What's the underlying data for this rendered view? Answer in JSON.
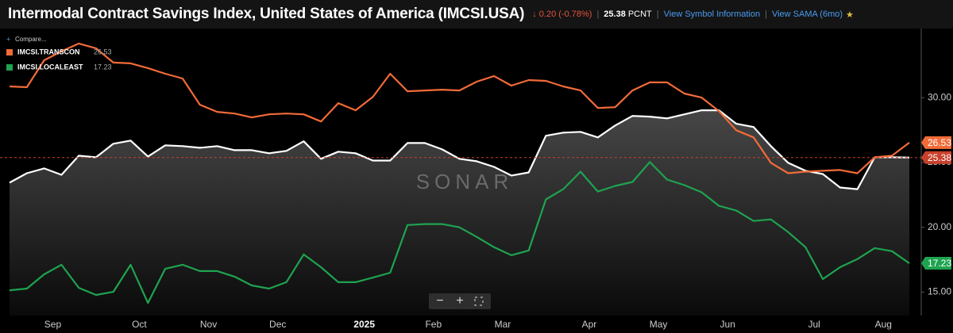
{
  "chart_data": {
    "type": "line",
    "title": "Intermodal Contract Savings Index, United States of America (IMCSI.USA)",
    "change": "0.20 (-0.78%)",
    "unit": "PCNT",
    "links": [
      "View Symbol Information",
      "View SAMA (6mo)"
    ],
    "compare": "Compare...",
    "watermark": "SONAR",
    "categories": [
      null,
      null,
      "Sep",
      null,
      null,
      null,
      null,
      "Oct",
      null,
      null,
      null,
      "Nov",
      null,
      null,
      null,
      "Dec",
      null,
      null,
      null,
      null,
      "2025",
      null,
      null,
      null,
      "Feb",
      null,
      null,
      null,
      "Mar",
      null,
      null,
      null,
      null,
      "Apr",
      null,
      null,
      null,
      "May",
      null,
      null,
      null,
      "Jun",
      null,
      null,
      null,
      null,
      "Jul",
      null,
      null,
      null,
      "Aug",
      null,
      null
    ],
    "series": [
      {
        "color": "#ffffff",
        "area": true,
        "values": [
          23.44,
          24.17,
          24.54,
          24.05,
          25.52,
          25.4,
          26.44,
          26.69,
          25.46,
          26.32,
          26.26,
          26.13,
          26.26,
          25.95,
          25.95,
          25.71,
          25.89,
          26.63,
          25.28,
          25.83,
          25.71,
          25.15,
          25.15,
          26.5,
          26.5,
          26.01,
          25.28,
          25.09,
          24.66,
          23.99,
          24.23,
          27.06,
          27.3,
          27.36,
          26.93,
          27.85,
          28.59,
          28.53,
          28.4,
          28.71,
          29.02,
          29.02,
          27.98,
          27.73,
          26.26,
          24.97,
          24.36,
          24.11,
          23.07,
          22.94,
          25.4,
          25.4,
          25.38
        ]
      },
      {
        "name": "IMCSI.TRANSCON",
        "color": "#f26b38",
        "values": [
          30.86,
          30.8,
          32.88,
          33.56,
          34.17,
          33.8,
          32.7,
          32.64,
          32.27,
          31.84,
          31.47,
          29.45,
          28.9,
          28.77,
          28.47,
          28.71,
          28.77,
          28.71,
          28.16,
          29.57,
          29.02,
          30.06,
          31.84,
          30.49,
          30.55,
          30.61,
          30.55,
          31.23,
          31.66,
          30.92,
          31.35,
          31.29,
          30.86,
          30.55,
          29.2,
          29.26,
          30.55,
          31.17,
          31.17,
          30.31,
          30.0,
          28.96,
          27.48,
          26.93,
          24.97,
          24.17,
          24.29,
          24.36,
          24.42,
          24.17,
          25.4,
          25.52,
          26.53
        ]
      },
      {
        "name": "IMCSI.LOCALEAST",
        "color": "#1ea34f",
        "values": [
          15.15,
          15.28,
          16.38,
          17.12,
          15.34,
          14.79,
          15.03,
          17.12,
          14.17,
          16.81,
          17.12,
          16.63,
          16.63,
          16.2,
          15.52,
          15.28,
          15.77,
          17.91,
          16.93,
          15.77,
          15.77,
          16.13,
          16.5,
          20.18,
          20.25,
          20.25,
          20.0,
          19.26,
          18.47,
          17.85,
          18.22,
          22.15,
          22.94,
          24.29,
          22.76,
          23.19,
          23.5,
          25.03,
          23.68,
          23.25,
          22.7,
          21.66,
          21.29,
          20.49,
          20.61,
          19.63,
          18.47,
          16.01,
          16.93,
          17.55,
          18.4,
          18.16,
          17.23
        ]
      }
    ],
    "ylim": [
      13.2,
      35.2
    ],
    "yticks": [
      {
        "value": 15,
        "label": "15.00"
      },
      {
        "value": 20,
        "label": "20.00"
      },
      {
        "value": 25,
        "label": "25.00"
      },
      {
        "value": 30,
        "label": "30.00"
      }
    ],
    "grid": false,
    "legend": "top-left"
  }
}
